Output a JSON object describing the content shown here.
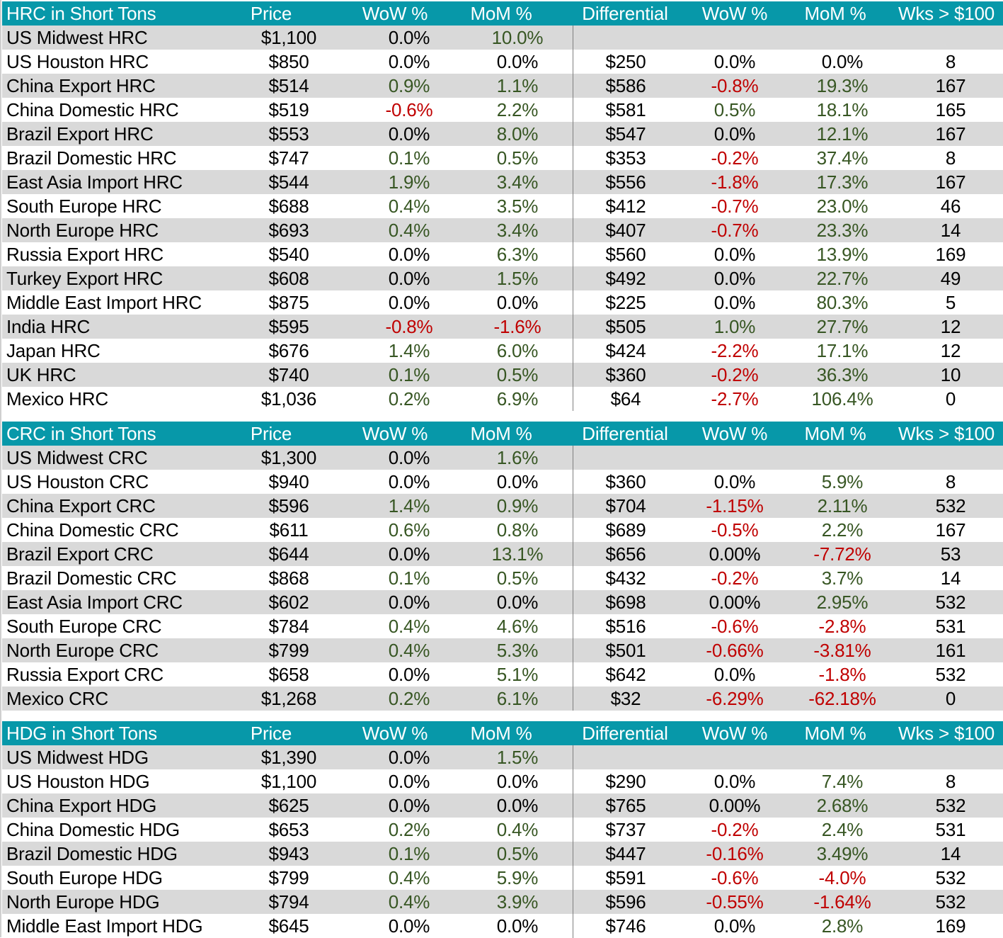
{
  "columns": {
    "price": "Price",
    "wow": "WoW %",
    "mom": "MoM %",
    "differential": "Differential",
    "diff_wow": "WoW %",
    "diff_mom": "MoM %",
    "weeks": "Wks > $100"
  },
  "colors": {
    "header_bg": "#0798a9",
    "shade_bg": "#d9d9d9",
    "positive": "#375623",
    "negative": "#c00000",
    "divider": "#7f7f7f"
  },
  "tables": [
    {
      "title": "HRC in Short Tons",
      "rows": [
        {
          "name": "US Midwest HRC",
          "price": "$1,100",
          "wow": "0.0%",
          "mom": "10.0%",
          "diff": "",
          "dwow": "",
          "dmom": "",
          "wks": ""
        },
        {
          "name": "US Houston HRC",
          "price": "$850",
          "wow": "0.0%",
          "mom": "0.0%",
          "diff": "$250",
          "dwow": "0.0%",
          "dmom": "0.0%",
          "wks": "8"
        },
        {
          "name": "China Export HRC",
          "price": "$514",
          "wow": "0.9%",
          "mom": "1.1%",
          "diff": "$586",
          "dwow": "-0.8%",
          "dmom": "19.3%",
          "wks": "167"
        },
        {
          "name": "China Domestic HRC",
          "price": "$519",
          "wow": "-0.6%",
          "mom": "2.2%",
          "diff": "$581",
          "dwow": "0.5%",
          "dmom": "18.1%",
          "wks": "165"
        },
        {
          "name": "Brazil Export HRC",
          "price": "$553",
          "wow": "0.0%",
          "mom": "8.0%",
          "diff": "$547",
          "dwow": "0.0%",
          "dmom": "12.1%",
          "wks": "167"
        },
        {
          "name": "Brazil Domestic HRC",
          "price": "$747",
          "wow": "0.1%",
          "mom": "0.5%",
          "diff": "$353",
          "dwow": "-0.2%",
          "dmom": "37.4%",
          "wks": "8"
        },
        {
          "name": "East Asia Import HRC",
          "price": "$544",
          "wow": "1.9%",
          "mom": "3.4%",
          "diff": "$556",
          "dwow": "-1.8%",
          "dmom": "17.3%",
          "wks": "167"
        },
        {
          "name": "South Europe HRC",
          "price": "$688",
          "wow": "0.4%",
          "mom": "3.5%",
          "diff": "$412",
          "dwow": "-0.7%",
          "dmom": "23.0%",
          "wks": "46"
        },
        {
          "name": "North Europe HRC",
          "price": "$693",
          "wow": "0.4%",
          "mom": "3.4%",
          "diff": "$407",
          "dwow": "-0.7%",
          "dmom": "23.3%",
          "wks": "14"
        },
        {
          "name": "Russia Export HRC",
          "price": "$540",
          "wow": "0.0%",
          "mom": "6.3%",
          "diff": "$560",
          "dwow": "0.0%",
          "dmom": "13.9%",
          "wks": "169"
        },
        {
          "name": "Turkey Export HRC",
          "price": "$608",
          "wow": "0.0%",
          "mom": "1.5%",
          "diff": "$492",
          "dwow": "0.0%",
          "dmom": "22.7%",
          "wks": "49"
        },
        {
          "name": "Middle East Import HRC",
          "price": "$875",
          "wow": "0.0%",
          "mom": "0.0%",
          "diff": "$225",
          "dwow": "0.0%",
          "dmom": "80.3%",
          "wks": "5"
        },
        {
          "name": "India HRC",
          "price": "$595",
          "wow": "-0.8%",
          "mom": "-1.6%",
          "diff": "$505",
          "dwow": "1.0%",
          "dmom": "27.7%",
          "wks": "12"
        },
        {
          "name": "Japan HRC",
          "price": "$676",
          "wow": "1.4%",
          "mom": "6.0%",
          "diff": "$424",
          "dwow": "-2.2%",
          "dmom": "17.1%",
          "wks": "12"
        },
        {
          "name": "UK HRC",
          "price": "$740",
          "wow": "0.1%",
          "mom": "0.5%",
          "diff": "$360",
          "dwow": "-0.2%",
          "dmom": "36.3%",
          "wks": "10"
        },
        {
          "name": "Mexico HRC",
          "price": "$1,036",
          "wow": "0.2%",
          "mom": "6.9%",
          "diff": "$64",
          "dwow": "-2.7%",
          "dmom": "106.4%",
          "wks": "0"
        }
      ]
    },
    {
      "title": "CRC in Short Tons",
      "rows": [
        {
          "name": "US Midwest CRC",
          "price": "$1,300",
          "wow": "0.0%",
          "mom": "1.6%",
          "diff": "",
          "dwow": "",
          "dmom": "",
          "wks": ""
        },
        {
          "name": "US Houston CRC",
          "price": "$940",
          "wow": "0.0%",
          "mom": "0.0%",
          "diff": "$360",
          "dwow": "0.0%",
          "dmom": "5.9%",
          "wks": "8"
        },
        {
          "name": "China Export CRC",
          "price": "$596",
          "wow": "1.4%",
          "mom": "0.9%",
          "diff": "$704",
          "dwow": "-1.15%",
          "dmom": "2.11%",
          "wks": "532"
        },
        {
          "name": "China Domestic CRC",
          "price": "$611",
          "wow": "0.6%",
          "mom": "0.8%",
          "diff": "$689",
          "dwow": "-0.5%",
          "dmom": "2.2%",
          "wks": "167"
        },
        {
          "name": "Brazil Export CRC",
          "price": "$644",
          "wow": "0.0%",
          "mom": "13.1%",
          "diff": "$656",
          "dwow": "0.00%",
          "dmom": "-7.72%",
          "wks": "53"
        },
        {
          "name": "Brazil Domestic CRC",
          "price": "$868",
          "wow": "0.1%",
          "mom": "0.5%",
          "diff": "$432",
          "dwow": "-0.2%",
          "dmom": "3.7%",
          "wks": "14"
        },
        {
          "name": "East Asia Import CRC",
          "price": "$602",
          "wow": "0.0%",
          "mom": "0.0%",
          "diff": "$698",
          "dwow": "0.00%",
          "dmom": "2.95%",
          "wks": "532"
        },
        {
          "name": "South Europe CRC",
          "price": "$784",
          "wow": "0.4%",
          "mom": "4.6%",
          "diff": "$516",
          "dwow": "-0.6%",
          "dmom": "-2.8%",
          "wks": "531"
        },
        {
          "name": "North Europe CRC",
          "price": "$799",
          "wow": "0.4%",
          "mom": "5.3%",
          "diff": "$501",
          "dwow": "-0.66%",
          "dmom": "-3.81%",
          "wks": "161"
        },
        {
          "name": "Russia Export CRC",
          "price": "$658",
          "wow": "0.0%",
          "mom": "5.1%",
          "diff": "$642",
          "dwow": "0.0%",
          "dmom": "-1.8%",
          "wks": "532"
        },
        {
          "name": "Mexico CRC",
          "price": "$1,268",
          "wow": "0.2%",
          "mom": "6.1%",
          "diff": "$32",
          "dwow": "-6.29%",
          "dmom": "-62.18%",
          "wks": "0"
        }
      ]
    },
    {
      "title": "HDG in Short Tons",
      "rows": [
        {
          "name": "US Midwest HDG",
          "price": "$1,390",
          "wow": "0.0%",
          "mom": "1.5%",
          "diff": "",
          "dwow": "",
          "dmom": "",
          "wks": ""
        },
        {
          "name": "US Houston HDG",
          "price": "$1,100",
          "wow": "0.0%",
          "mom": "0.0%",
          "diff": "$290",
          "dwow": "0.0%",
          "dmom": "7.4%",
          "wks": "8"
        },
        {
          "name": "China Export HDG",
          "price": "$625",
          "wow": "0.0%",
          "mom": "0.0%",
          "diff": "$765",
          "dwow": "0.00%",
          "dmom": "2.68%",
          "wks": "532"
        },
        {
          "name": "China Domestic HDG",
          "price": "$653",
          "wow": "0.2%",
          "mom": "0.4%",
          "diff": "$737",
          "dwow": "-0.2%",
          "dmom": "2.4%",
          "wks": "531"
        },
        {
          "name": "Brazil Domestic HDG",
          "price": "$943",
          "wow": "0.1%",
          "mom": "0.5%",
          "diff": "$447",
          "dwow": "-0.16%",
          "dmom": "3.49%",
          "wks": "14"
        },
        {
          "name": "South Europe HDG",
          "price": "$799",
          "wow": "0.4%",
          "mom": "5.9%",
          "diff": "$591",
          "dwow": "-0.6%",
          "dmom": "-4.0%",
          "wks": "532"
        },
        {
          "name": "North Europe HDG",
          "price": "$794",
          "wow": "0.4%",
          "mom": "3.9%",
          "diff": "$596",
          "dwow": "-0.55%",
          "dmom": "-1.64%",
          "wks": "532"
        },
        {
          "name": "Middle East Import HDG",
          "price": "$645",
          "wow": "0.0%",
          "mom": "0.0%",
          "diff": "$746",
          "dwow": "0.0%",
          "dmom": "2.8%",
          "wks": "169"
        }
      ]
    }
  ]
}
